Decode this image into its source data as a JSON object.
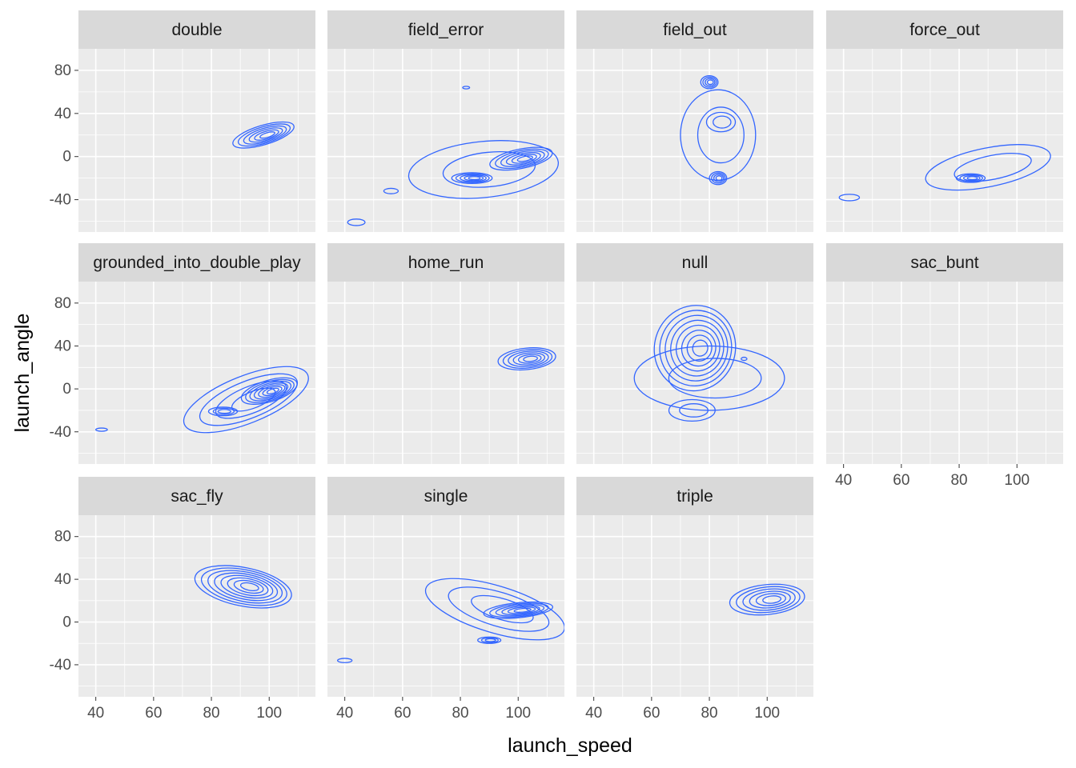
{
  "chart_data": {
    "type": "density_2d_contour",
    "xlabel": "launch_speed",
    "ylabel": "launch_angle",
    "xlim": [
      34,
      116
    ],
    "ylim": [
      -70,
      100
    ],
    "x_ticks": [
      40,
      60,
      80,
      100
    ],
    "y_ticks": [
      -40,
      0,
      40,
      80
    ],
    "grid": true,
    "contour_color": "#3366FF",
    "panel_background": "#EBEBEB",
    "strip_background": "#D9D9D9",
    "facets": [
      {
        "name": "double",
        "clusters": [
          {
            "cx": 98,
            "cy": 20,
            "rx": 11,
            "ry": 9,
            "levels": 6,
            "skew": 0.3
          }
        ]
      },
      {
        "name": "field_error",
        "clusters": [
          {
            "cx": 88,
            "cy": -12,
            "rx": 26,
            "ry": 26,
            "levels": 2,
            "skew": 0.1
          },
          {
            "cx": 84,
            "cy": -20,
            "rx": 7,
            "ry": 5,
            "levels": 5,
            "skew": 0
          },
          {
            "cx": 101,
            "cy": -2,
            "rx": 11,
            "ry": 9,
            "levels": 6,
            "skew": 0.2
          },
          {
            "cx": 82,
            "cy": 64,
            "rx": 1.2,
            "ry": 1.2,
            "levels": 1,
            "skew": 0
          },
          {
            "cx": 44,
            "cy": -61,
            "rx": 3,
            "ry": 3,
            "levels": 1,
            "skew": 0
          },
          {
            "cx": 56,
            "cy": -32,
            "rx": 2.5,
            "ry": 2.5,
            "levels": 1,
            "skew": 0
          }
        ]
      },
      {
        "name": "field_out",
        "clusters": [
          {
            "cx": 80,
            "cy": 69,
            "rx": 3,
            "ry": 6,
            "levels": 4,
            "skew": 0
          },
          {
            "cx": 83,
            "cy": 20,
            "rx": 13,
            "ry": 42,
            "levels": 2,
            "skew": 0
          },
          {
            "cx": 84,
            "cy": 32,
            "rx": 5,
            "ry": 9,
            "levels": 2,
            "skew": 0
          },
          {
            "cx": 83,
            "cy": -20,
            "rx": 3,
            "ry": 6,
            "levels": 4,
            "skew": 0
          }
        ]
      },
      {
        "name": "force_out",
        "clusters": [
          {
            "cx": 90,
            "cy": -10,
            "rx": 22,
            "ry": 18,
            "levels": 2,
            "skew": 0.2
          },
          {
            "cx": 84,
            "cy": -20,
            "rx": 5,
            "ry": 4,
            "levels": 4,
            "skew": 0
          },
          {
            "cx": 42,
            "cy": -38,
            "rx": 3.5,
            "ry": 3,
            "levels": 1,
            "skew": 0
          }
        ]
      },
      {
        "name": "grounded_into_double_play",
        "clusters": [
          {
            "cx": 92,
            "cy": -10,
            "rx": 23,
            "ry": 22,
            "levels": 4,
            "skew": 0.4
          },
          {
            "cx": 100,
            "cy": -2,
            "rx": 10,
            "ry": 10,
            "levels": 7,
            "skew": 0.3
          },
          {
            "cx": 84,
            "cy": -21,
            "rx": 5,
            "ry": 4,
            "levels": 3,
            "skew": 0
          },
          {
            "cx": 42,
            "cy": -38,
            "rx": 2,
            "ry": 1.5,
            "levels": 1,
            "skew": 0
          }
        ]
      },
      {
        "name": "home_run",
        "clusters": [
          {
            "cx": 103,
            "cy": 28,
            "rx": 10,
            "ry": 10,
            "levels": 6,
            "skew": 0.1
          }
        ]
      },
      {
        "name": "null",
        "clusters": [
          {
            "cx": 75,
            "cy": 38,
            "rx": 14,
            "ry": 40,
            "levels": 8,
            "skew": -0.3
          },
          {
            "cx": 80,
            "cy": 10,
            "rx": 26,
            "ry": 30,
            "levels": 2,
            "skew": 0
          },
          {
            "cx": 74,
            "cy": -20,
            "rx": 8,
            "ry": 10,
            "levels": 2,
            "skew": 0
          },
          {
            "cx": 92,
            "cy": 28,
            "rx": 1,
            "ry": 1.5,
            "levels": 1,
            "skew": 0
          }
        ]
      },
      {
        "name": "sac_bunt",
        "clusters": []
      },
      {
        "name": "sac_fly",
        "clusters": [
          {
            "cx": 91,
            "cy": 33,
            "rx": 17,
            "ry": 18,
            "levels": 8,
            "skew": -0.2
          }
        ]
      },
      {
        "name": "single",
        "clusters": [
          {
            "cx": 92,
            "cy": 12,
            "rx": 25,
            "ry": 22,
            "levels": 3,
            "skew": -0.3
          },
          {
            "cx": 100,
            "cy": 11,
            "rx": 12,
            "ry": 7,
            "levels": 6,
            "skew": 0.1
          },
          {
            "cx": 90,
            "cy": -17,
            "rx": 4,
            "ry": 3,
            "levels": 3,
            "skew": 0
          },
          {
            "cx": 40,
            "cy": -36,
            "rx": 2.5,
            "ry": 2,
            "levels": 1,
            "skew": 0
          }
        ]
      },
      {
        "name": "triple",
        "clusters": [
          {
            "cx": 100,
            "cy": 21,
            "rx": 13,
            "ry": 14,
            "levels": 6,
            "skew": 0.1
          }
        ]
      }
    ]
  }
}
